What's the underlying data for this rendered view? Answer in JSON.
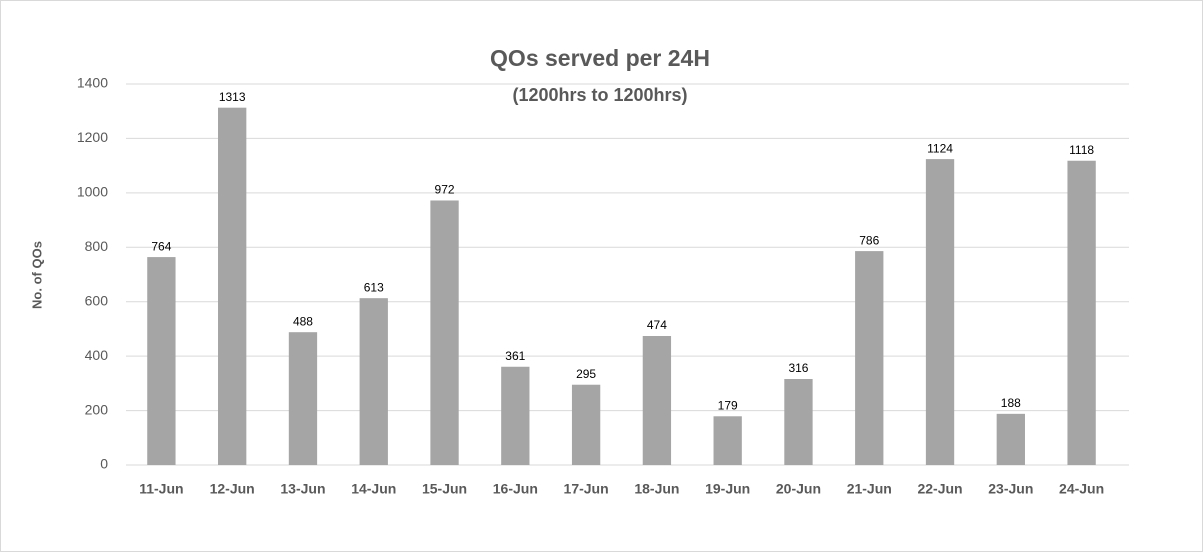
{
  "chart_data": {
    "type": "bar",
    "title": "QOs served per 24H",
    "subtitle": "(1200hrs to 1200hrs)",
    "y_label": "No. of QOs",
    "categories": [
      "11-Jun",
      "12-Jun",
      "13-Jun",
      "14-Jun",
      "15-Jun",
      "16-Jun",
      "17-Jun",
      "18-Jun",
      "19-Jun",
      "20-Jun",
      "21-Jun",
      "22-Jun",
      "23-Jun",
      "24-Jun"
    ],
    "values": [
      764,
      1313,
      488,
      613,
      972,
      361,
      295,
      474,
      179,
      316,
      786,
      1124,
      188,
      1118
    ],
    "color": "#a5a5a5",
    "ylim": [
      0,
      1400
    ],
    "yticks": [
      0,
      200,
      400,
      600,
      800,
      1000,
      1200,
      1400
    ],
    "grid": true
  }
}
